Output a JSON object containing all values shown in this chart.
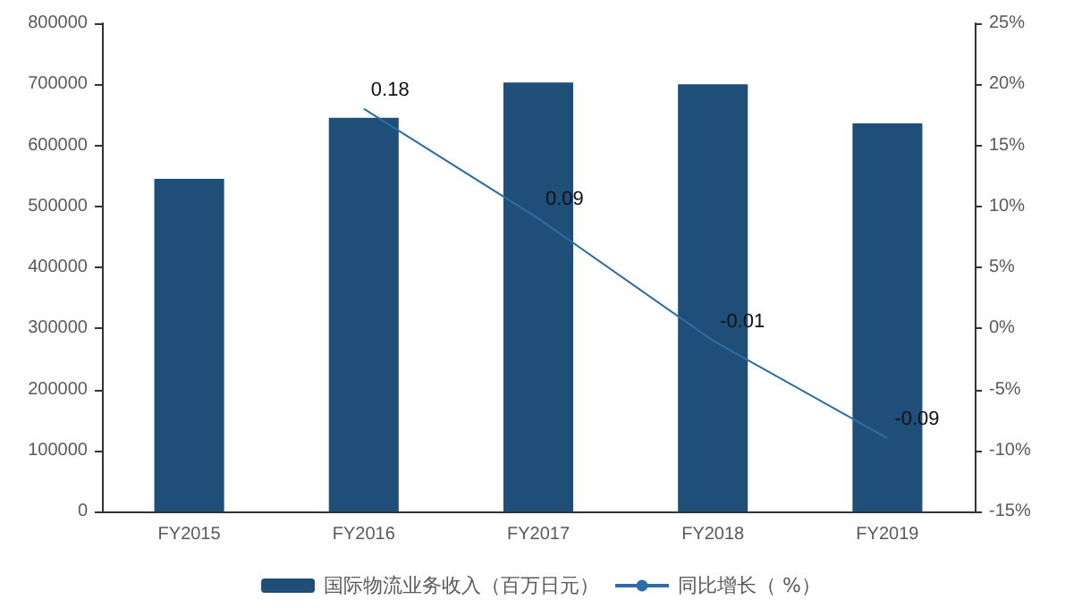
{
  "chart_data": {
    "type": "bar",
    "categories": [
      "FY2015",
      "FY2016",
      "FY2017",
      "FY2018",
      "FY2019"
    ],
    "series": [
      {
        "name": "国际物流业务收入（百万日元）",
        "color": "#1f4e79",
        "values": [
          545000,
          645000,
          703000,
          700000,
          636000
        ]
      },
      {
        "name": "同比增长（ %）",
        "type": "line",
        "axis": "y2",
        "color": "#2e6da4",
        "values": [
          0.18,
          0.09,
          -0.01,
          -0.09
        ],
        "x": [
          "FY2016",
          "FY2017",
          "FY2018",
          "FY2019"
        ],
        "value_labels": [
          "0.18",
          "0.09",
          "-0.01",
          "-0.09"
        ]
      }
    ],
    "ylim": [
      0,
      800000
    ],
    "yticks": [
      0,
      100000,
      200000,
      300000,
      400000,
      500000,
      600000,
      700000,
      800000
    ],
    "y2lim": [
      -0.15,
      0.25
    ],
    "y2ticks": [
      {
        "value": -0.15,
        "label": "-15%"
      },
      {
        "value": -0.1,
        "label": "-10%"
      },
      {
        "value": -0.05,
        "label": "-5%"
      },
      {
        "value": 0,
        "label": "0%"
      },
      {
        "value": 0.05,
        "label": "5%"
      },
      {
        "value": 0.1,
        "label": "10%"
      },
      {
        "value": 0.15,
        "label": "15%"
      },
      {
        "value": 0.2,
        "label": "20%"
      },
      {
        "value": 0.25,
        "label": "25%"
      }
    ],
    "grid": false,
    "legend": "bottom",
    "marker": "none",
    "line_style": "solid"
  }
}
